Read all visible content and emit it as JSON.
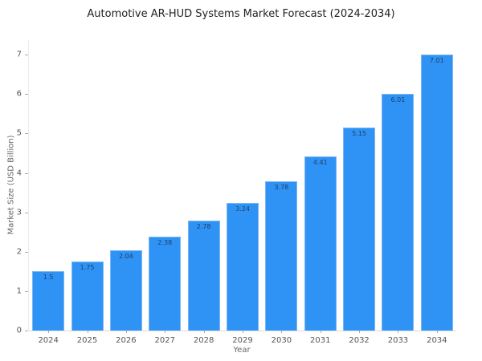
{
  "chart_data": {
    "type": "bar",
    "title": "Automotive AR-HUD Systems Market Forecast (2024-2034)",
    "xlabel": "Year",
    "ylabel": "Market Size (USD Billion)",
    "categories": [
      "2024",
      "2025",
      "2026",
      "2027",
      "2028",
      "2029",
      "2030",
      "2031",
      "2032",
      "2033",
      "2034"
    ],
    "values": [
      1.5,
      1.75,
      2.04,
      2.38,
      2.78,
      3.24,
      3.78,
      4.41,
      5.15,
      6.01,
      7.01
    ],
    "value_labels": [
      "1.5",
      "1.75",
      "2.04",
      "2.38",
      "2.78",
      "3.24",
      "3.78",
      "4.41",
      "5.15",
      "6.01",
      "7.01"
    ],
    "yticks": [
      0,
      1,
      2,
      3,
      4,
      5,
      6,
      7
    ],
    "ylim": [
      0,
      7.37
    ],
    "grid": false,
    "legend": "none",
    "colors": {
      "bar_fill": "#2E93F5",
      "bar_edge": "#7ab6f3",
      "bar_label_text": "#1f3f66",
      "tick_label": "#555555",
      "axis_title": "#666666",
      "title_text": "#222222",
      "axis_line": "#d9d9d9",
      "background": "#ffffff"
    }
  }
}
